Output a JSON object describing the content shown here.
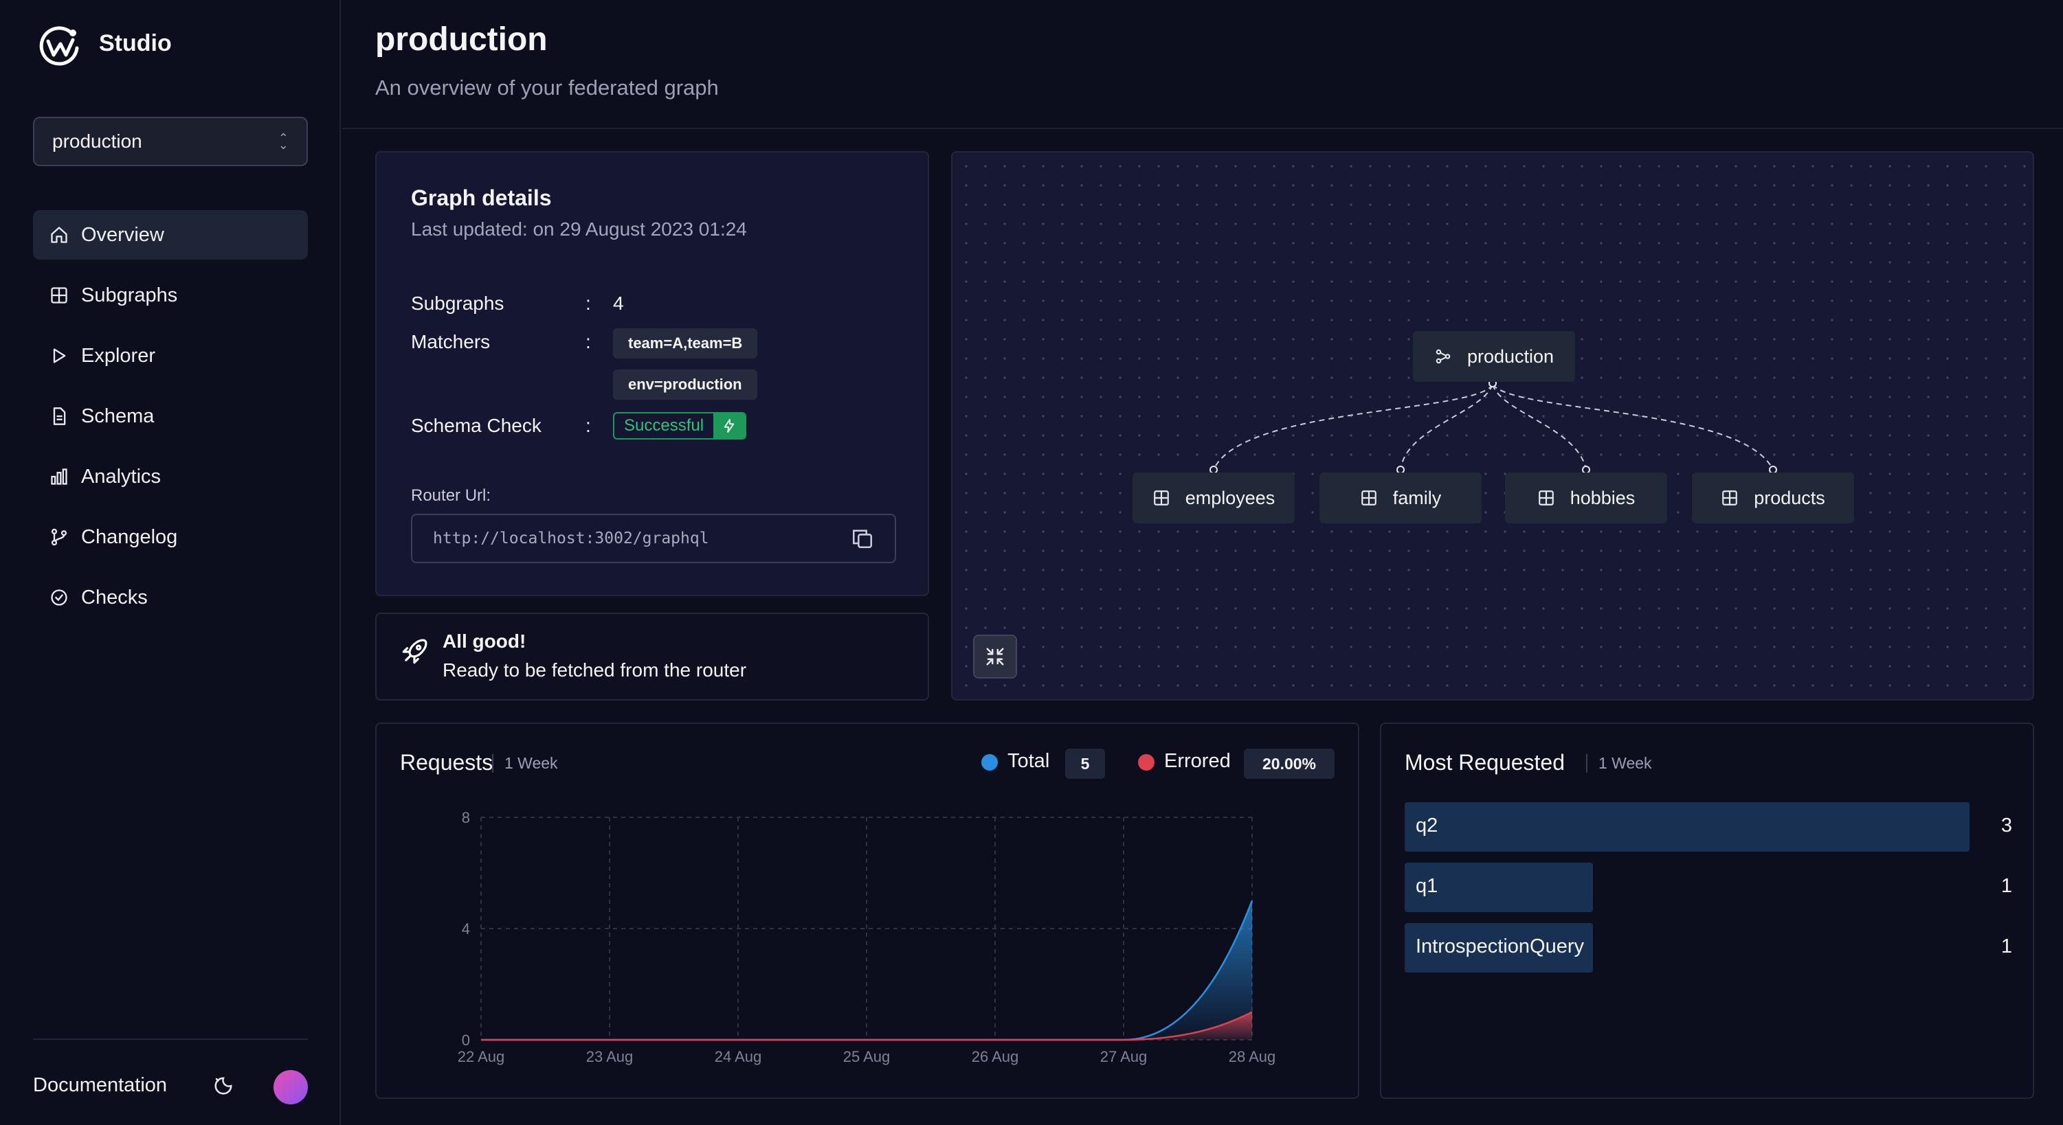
{
  "app": {
    "name": "Studio"
  },
  "sidebar": {
    "graph_selector": "production",
    "items": [
      {
        "label": "Overview",
        "icon": "home-icon",
        "active": true
      },
      {
        "label": "Subgraphs",
        "icon": "grid-icon"
      },
      {
        "label": "Explorer",
        "icon": "play-icon"
      },
      {
        "label": "Schema",
        "icon": "document-icon"
      },
      {
        "label": "Analytics",
        "icon": "bar-chart-icon"
      },
      {
        "label": "Changelog",
        "icon": "git-branch-icon"
      },
      {
        "label": "Checks",
        "icon": "check-circle-icon"
      }
    ],
    "documentation": "Documentation"
  },
  "header": {
    "title": "production",
    "subtitle": "An overview of your federated graph"
  },
  "graph_details": {
    "title": "Graph details",
    "last_updated": "Last updated: on 29 August 2023 01:24",
    "subgraphs_label": "Subgraphs",
    "subgraphs_value": "4",
    "matchers_label": "Matchers",
    "matchers": [
      "team=A,team=B",
      "env=production"
    ],
    "schema_check_label": "Schema Check",
    "schema_check_status": "Successful",
    "colon": ":",
    "router_label": "Router Url:",
    "router_url": "http://localhost:3002/graphql"
  },
  "status": {
    "title": "All good!",
    "message": "Ready to be fetched from the router"
  },
  "graph": {
    "root": "production",
    "subgraphs": [
      "employees",
      "family",
      "hobbies",
      "products"
    ]
  },
  "requests": {
    "title": "Requests",
    "period": "1 Week",
    "legend": {
      "total_label": "Total",
      "total_value": "5",
      "errored_label": "Errored",
      "errored_value": "20.00%"
    }
  },
  "chart_data": {
    "type": "area",
    "x": [
      "22 Aug",
      "23 Aug",
      "24 Aug",
      "25 Aug",
      "26 Aug",
      "27 Aug",
      "28 Aug"
    ],
    "y_ticks": [
      0,
      4,
      8
    ],
    "ylim": [
      0,
      8
    ],
    "series": [
      {
        "name": "Total",
        "color": "#2a8fe0",
        "values": [
          0,
          0,
          0,
          0,
          0,
          0,
          5
        ]
      },
      {
        "name": "Errored",
        "color": "#e0414e",
        "values": [
          0,
          0,
          0,
          0,
          0,
          0,
          1
        ]
      }
    ]
  },
  "most_requested": {
    "title": "Most Requested",
    "period": "1 Week",
    "items": [
      {
        "label": "q2",
        "count": 3
      },
      {
        "label": "q1",
        "count": 1
      },
      {
        "label": "IntrospectionQuery",
        "count": 1
      }
    ]
  },
  "colors": {
    "background": "#0c0e1d",
    "card": "#151631",
    "accent_blue": "#2a8fe0",
    "accent_red": "#e0414e",
    "success": "#1d9a5a"
  }
}
